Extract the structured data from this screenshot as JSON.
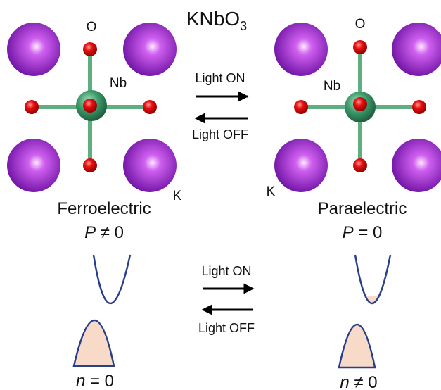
{
  "title": {
    "main": "KNbO",
    "sub": "3"
  },
  "left": {
    "labels": {
      "oxygen": "O",
      "niobium": "Nb",
      "potassium": "K"
    },
    "phase": "Ferroelectric",
    "polarization": {
      "symbol": "P",
      "relation": "≠ 0"
    },
    "carriers": {
      "symbol": "n",
      "relation": "= 0"
    }
  },
  "right": {
    "labels": {
      "oxygen": "O",
      "niobium": "Nb",
      "potassium": "K"
    },
    "phase": "Paraelectric",
    "polarization": {
      "symbol": "P",
      "relation": "= 0"
    },
    "carriers": {
      "symbol": "n",
      "relation": "≠ 0"
    }
  },
  "top_arrows": {
    "forward": "Light ON",
    "backward": "Light OFF"
  },
  "bottom_arrows": {
    "forward": "Light ON",
    "backward": "Light OFF"
  }
}
